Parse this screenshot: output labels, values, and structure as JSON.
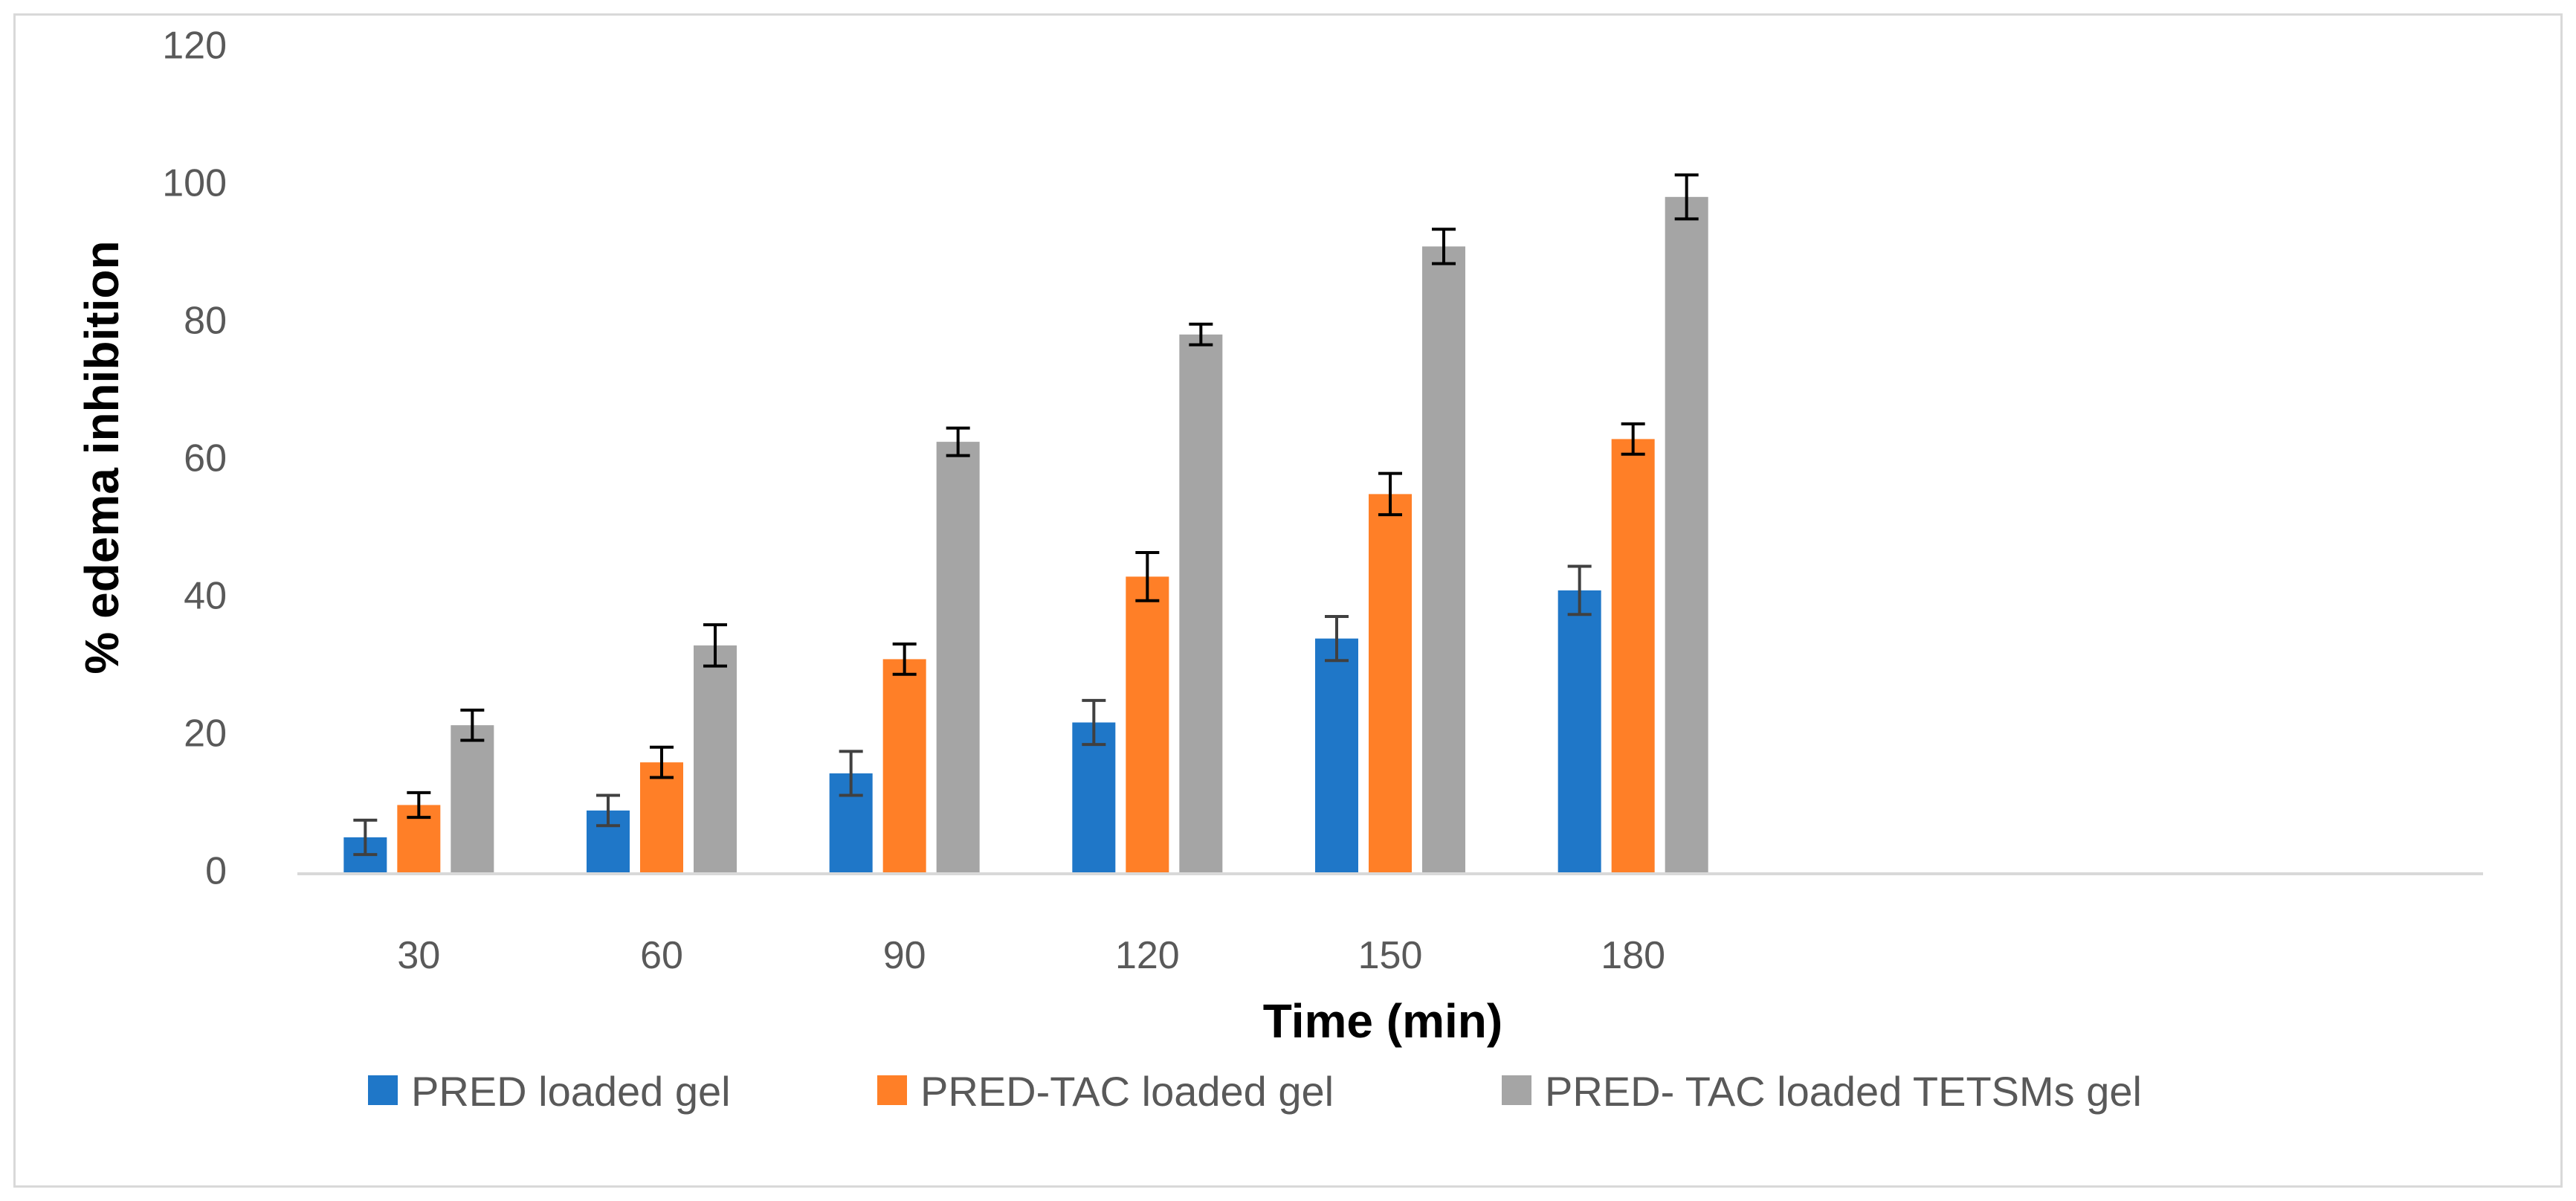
{
  "chart_data": {
    "type": "bar",
    "title": "",
    "xlabel": "Time (min)",
    "ylabel": "% edema inhibition",
    "categories": [
      "30",
      "60",
      "90",
      "120",
      "150",
      "180"
    ],
    "x_axis_extra_empty_slots": 3,
    "ylim": [
      0,
      120
    ],
    "yticks": [
      "0",
      "20",
      "40",
      "60",
      "80",
      "100",
      "120"
    ],
    "grid": false,
    "legend_position": "bottom",
    "series": [
      {
        "name": "PRED loaded gel",
        "color": "#1f77c8",
        "values": [
          5.3,
          9.2,
          14.6,
          22.0,
          34.2,
          41.2
        ],
        "errors": [
          2.5,
          2.2,
          3.2,
          3.2,
          3.2,
          3.5
        ]
      },
      {
        "name": "PRED-TAC loaded gel",
        "color": "#ff7f27",
        "values": [
          10.0,
          16.2,
          31.2,
          43.2,
          55.2,
          63.2
        ],
        "errors": [
          1.8,
          2.2,
          2.2,
          3.5,
          3.0,
          2.2
        ]
      },
      {
        "name": "PRED- TAC loaded TETSMs gel",
        "color": "#a5a5a5",
        "values": [
          21.6,
          33.2,
          62.8,
          78.4,
          91.2,
          98.4
        ],
        "errors": [
          2.2,
          3.0,
          2.0,
          1.5,
          2.5,
          3.2
        ]
      }
    ]
  }
}
